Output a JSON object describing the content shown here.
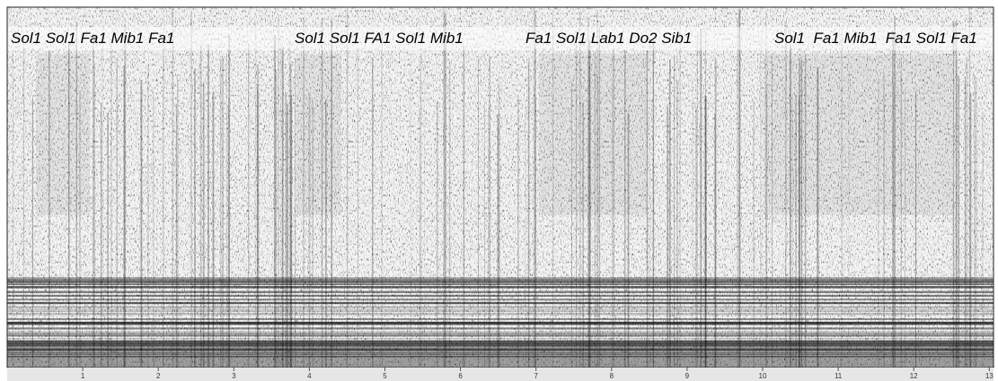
{
  "annotations": [
    "Sol1 Sol1 Fa1 Mib1 Fa1",
    "Sol1 Sol1 FA1 Sol1 Mib1",
    "Fa1 Sol1 Lab1 Do2 Sib1",
    "Sol1  Fa1 Mib1  Fa1 Sol1 Fa1"
  ],
  "axis": {
    "ticks": [
      1,
      2,
      3,
      4,
      5,
      6,
      7,
      8,
      9,
      10,
      11,
      12,
      13
    ]
  }
}
